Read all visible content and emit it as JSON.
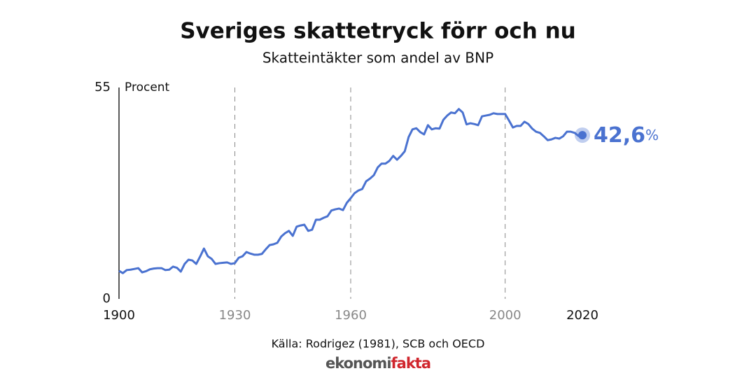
{
  "chart_data": {
    "type": "line",
    "title": "Sveriges skattetryck förr och nu",
    "subtitle": "Skatteintäkter som andel av BNP",
    "y_axis_label": "Procent",
    "source": "Källa: Rodrigez (1981), SCB och OECD",
    "logo": [
      "ekonomi",
      "fakta"
    ],
    "end_annotation": {
      "text": "42,6",
      "unit": "%"
    },
    "x": [
      1900,
      1901,
      1902,
      1903,
      1904,
      1905,
      1906,
      1907,
      1908,
      1909,
      1910,
      1911,
      1912,
      1913,
      1914,
      1915,
      1916,
      1917,
      1918,
      1919,
      1920,
      1921,
      1922,
      1923,
      1924,
      1925,
      1926,
      1927,
      1928,
      1929,
      1930,
      1931,
      1932,
      1933,
      1934,
      1935,
      1936,
      1937,
      1938,
      1939,
      1940,
      1941,
      1942,
      1943,
      1944,
      1945,
      1946,
      1947,
      1948,
      1949,
      1950,
      1951,
      1952,
      1953,
      1954,
      1955,
      1956,
      1957,
      1958,
      1959,
      1960,
      1961,
      1962,
      1963,
      1964,
      1965,
      1966,
      1967,
      1968,
      1969,
      1970,
      1971,
      1972,
      1973,
      1974,
      1975,
      1976,
      1977,
      1978,
      1979,
      1980,
      1981,
      1982,
      1983,
      1984,
      1985,
      1986,
      1987,
      1988,
      1989,
      1990,
      1991,
      1992,
      1993,
      1994,
      1995,
      1996,
      1997,
      1998,
      1999,
      2000,
      2001,
      2002,
      2003,
      2004,
      2005,
      2006,
      2007,
      2008,
      2009,
      2010,
      2011,
      2012,
      2013,
      2014,
      2015,
      2016,
      2017,
      2018,
      2019,
      2020
    ],
    "series": [
      {
        "name": "Skattetryck",
        "color": "#4a72d0",
        "values": [
          7.3,
          6.7,
          7.5,
          7.6,
          7.8,
          8.0,
          6.9,
          7.2,
          7.7,
          7.9,
          8.0,
          8.0,
          7.5,
          7.6,
          8.4,
          8.1,
          7.1,
          9.1,
          10.2,
          10.0,
          9.1,
          11.0,
          13.1,
          11.1,
          10.4,
          9.1,
          9.3,
          9.4,
          9.5,
          9.1,
          9.3,
          10.7,
          11.1,
          12.2,
          11.8,
          11.5,
          11.5,
          11.7,
          12.9,
          14.0,
          14.2,
          14.6,
          16.2,
          17.1,
          17.7,
          16.4,
          18.8,
          19.1,
          19.3,
          17.7,
          18.0,
          20.6,
          20.6,
          21.1,
          21.5,
          23.0,
          23.3,
          23.5,
          23.1,
          25.0,
          26.2,
          27.5,
          28.2,
          28.6,
          30.6,
          31.3,
          32.2,
          34.2,
          35.2,
          35.2,
          35.9,
          37.2,
          36.2,
          37.2,
          38.4,
          42.1,
          44.1,
          44.4,
          43.4,
          42.8,
          45.2,
          44.1,
          44.4,
          44.3,
          46.6,
          47.7,
          48.5,
          48.3,
          49.4,
          48.5,
          45.4,
          45.7,
          45.5,
          45.2,
          47.5,
          47.7,
          47.9,
          48.3,
          48.1,
          48.1,
          48.1,
          46.4,
          44.6,
          45.0,
          45.0,
          46.1,
          45.5,
          44.3,
          43.5,
          43.2,
          42.3,
          41.3,
          41.5,
          41.9,
          41.7,
          42.3,
          43.5,
          43.5,
          43.2,
          42.4,
          42.6
        ]
      }
    ],
    "xlim": [
      1900,
      2020
    ],
    "xticks": [
      1900,
      1930,
      1960,
      2000,
      2020
    ],
    "ylim": [
      0,
      55
    ],
    "yticks": [
      0,
      55
    ],
    "grid": true
  }
}
